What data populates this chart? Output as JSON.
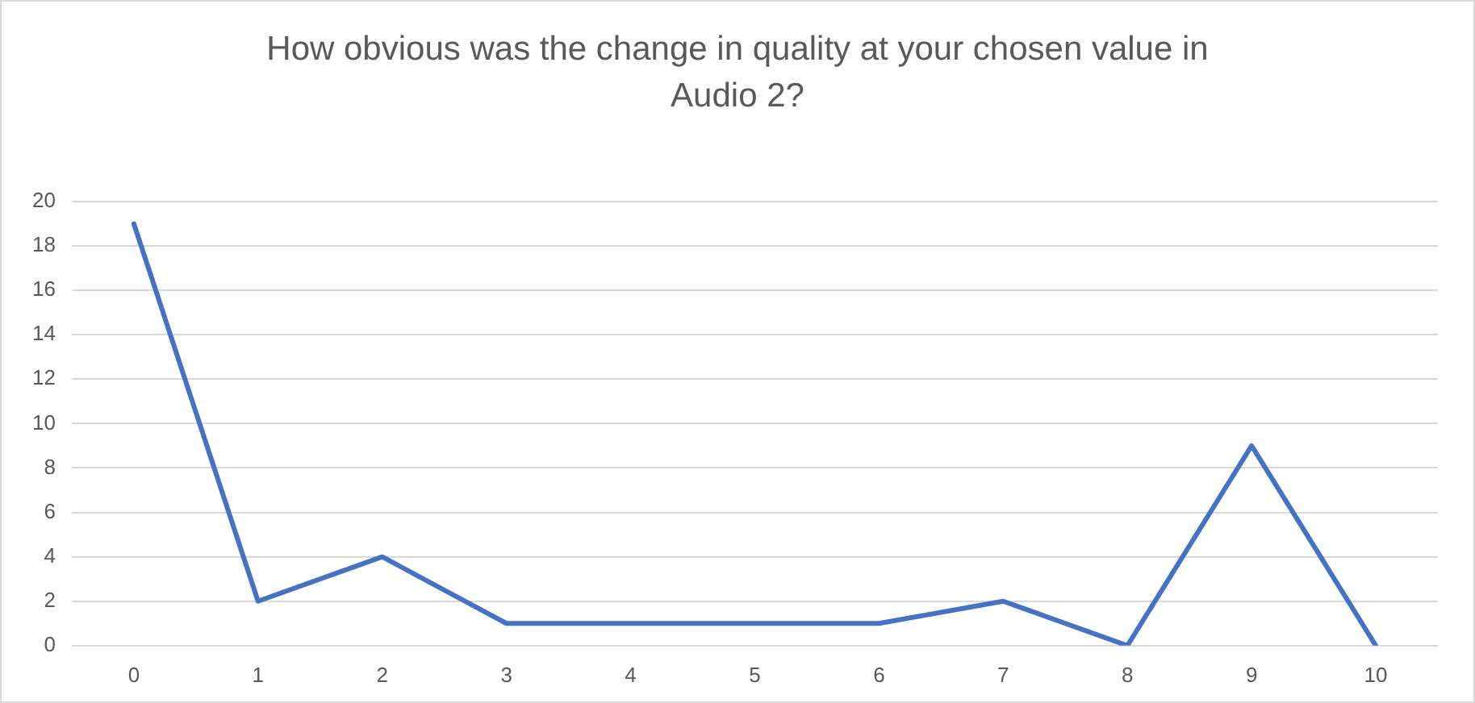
{
  "chart_data": {
    "type": "line",
    "title": "How obvious was the change in quality at your chosen value in Audio 2?",
    "categories": [
      "0",
      "1",
      "2",
      "3",
      "4",
      "5",
      "6",
      "7",
      "8",
      "9",
      "10"
    ],
    "series": [
      {
        "color": "#4472c4",
        "values": [
          19,
          2,
          4,
          1,
          1,
          1,
          1,
          2,
          0,
          9,
          0
        ]
      }
    ],
    "ylim": [
      0,
      20
    ],
    "yticks": [
      0,
      2,
      4,
      6,
      8,
      10,
      12,
      14,
      16,
      18,
      20
    ],
    "grid": "y",
    "legend": false,
    "marker": "none",
    "line_style": "solid"
  }
}
